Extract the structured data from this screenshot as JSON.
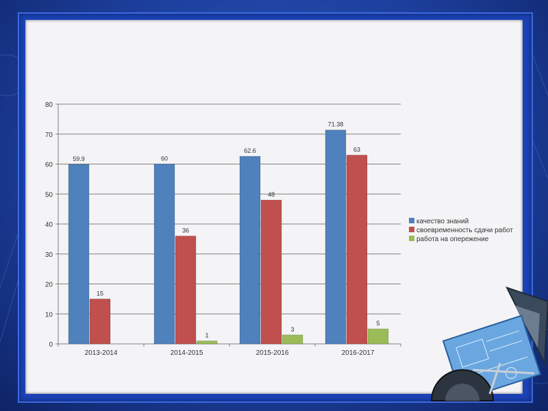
{
  "chart_data": {
    "type": "bar",
    "categories": [
      "2013-2014",
      "2014-2015",
      "2015-2016",
      "2016-2017"
    ],
    "series": [
      {
        "name": "качество знаний",
        "values": [
          59.9,
          60,
          62.6,
          71.38
        ],
        "labels": [
          "59.9",
          "60",
          "62.6",
          "71.38"
        ],
        "color": "#4f81bd"
      },
      {
        "name": "своевременность сдачи работ",
        "values": [
          15,
          36,
          48,
          63
        ],
        "labels": [
          "15",
          "36",
          "48",
          "63"
        ],
        "color": "#c0504d"
      },
      {
        "name": "работа на опережение",
        "values": [
          0,
          1,
          3,
          5
        ],
        "labels": [
          "",
          "1",
          "3",
          "5"
        ],
        "color": "#9bbb59"
      }
    ],
    "yticks": [
      "0",
      "10",
      "20",
      "30",
      "40",
      "50",
      "60",
      "70",
      "80"
    ],
    "ylim": [
      0,
      80
    ],
    "grid": true,
    "legend_position": "right"
  }
}
